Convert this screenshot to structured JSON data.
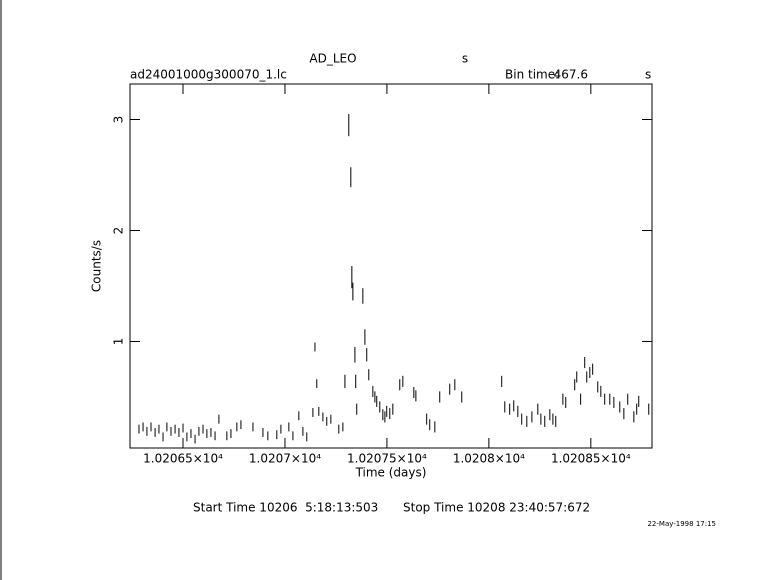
{
  "chart_data": {
    "type": "errorbar",
    "title": "AD_LEO",
    "title_suffix": "s",
    "subtitle": "ad24001000g300070_1.lc",
    "bin_time_label": "Bin time:",
    "bin_time": 467.6,
    "bin_time_unit": "s",
    "xlabel": "Time (days)",
    "ylabel": "Counts/s",
    "start_time": "Start Time 10206  5:18:13:503",
    "stop_time": "Stop Time 10208 23:40:57:672",
    "timestamp": "22-May-1998 17:15",
    "color": "#000000",
    "xlim": [
      10206.24,
      10208.8
    ],
    "ylim": [
      0.04,
      3.32
    ],
    "xticks": [
      {
        "value": 10206.5,
        "label": "1.02065×10⁴"
      },
      {
        "value": 10207.0,
        "label": "1.0207×10⁴"
      },
      {
        "value": 10207.5,
        "label": "1.02075×10⁴"
      },
      {
        "value": 10208.0,
        "label": "1.0208×10⁴"
      },
      {
        "value": 10208.5,
        "label": "1.02085×10⁴"
      }
    ],
    "yticks": [
      1,
      2,
      3
    ],
    "x": [
      10206.284,
      10206.304,
      10206.323,
      10206.343,
      10206.363,
      10206.382,
      10206.402,
      10206.421,
      10206.441,
      10206.461,
      10206.48,
      10206.5,
      10206.519,
      10206.539,
      10206.559,
      10206.578,
      10206.598,
      10206.617,
      10206.637,
      10206.657,
      10206.676,
      10206.715,
      10206.735,
      10206.764,
      10206.784,
      10206.843,
      10206.892,
      10206.916,
      10206.96,
      10206.98,
      10207.019,
      10207.039,
      10207.068,
      10207.088,
      10207.107,
      10207.137,
      10207.147,
      10207.156,
      10207.166,
      10207.186,
      10207.205,
      10207.225,
      10207.264,
      10207.284,
      10207.294,
      10207.313,
      10207.323,
      10207.328,
      10207.333,
      10207.343,
      10207.347,
      10207.352,
      10207.382,
      10207.392,
      10207.401,
      10207.411,
      10207.431,
      10207.441,
      10207.45,
      10207.465,
      10207.48,
      10207.49,
      10207.499,
      10207.514,
      10207.529,
      10207.563,
      10207.578,
      10207.632,
      10207.642,
      10207.695,
      10207.71,
      10207.735,
      10207.759,
      10207.808,
      10207.833,
      10207.867,
      10208.063,
      10208.078,
      10208.102,
      10208.122,
      10208.142,
      10208.161,
      10208.186,
      10208.211,
      10208.24,
      10208.255,
      10208.274,
      10208.299,
      10208.314,
      10208.328,
      10208.363,
      10208.377,
      10208.421,
      10208.431,
      10208.45,
      10208.47,
      10208.48,
      10208.495,
      10208.509,
      10208.534,
      10208.549,
      10208.568,
      10208.593,
      10208.613,
      10208.642,
      10208.662,
      10208.681,
      10208.711,
      10208.725,
      10208.735,
      10208.784
    ],
    "values": [
      0.21,
      0.23,
      0.19,
      0.23,
      0.18,
      0.21,
      0.14,
      0.23,
      0.19,
      0.21,
      0.18,
      0.22,
      0.14,
      0.17,
      0.12,
      0.19,
      0.21,
      0.17,
      0.18,
      0.15,
      0.3,
      0.15,
      0.17,
      0.23,
      0.25,
      0.23,
      0.18,
      0.15,
      0.16,
      0.21,
      0.23,
      0.15,
      0.33,
      0.19,
      0.14,
      0.36,
      0.95,
      0.62,
      0.37,
      0.32,
      0.28,
      0.3,
      0.21,
      0.23,
      0.64,
      2.95,
      2.48,
      1.58,
      1.45,
      0.88,
      0.64,
      0.39,
      1.41,
      1.04,
      0.88,
      0.7,
      0.55,
      0.5,
      0.46,
      0.41,
      0.34,
      0.32,
      0.37,
      0.35,
      0.39,
      0.61,
      0.64,
      0.54,
      0.51,
      0.3,
      0.25,
      0.23,
      0.5,
      0.57,
      0.61,
      0.5,
      0.64,
      0.41,
      0.39,
      0.42,
      0.37,
      0.3,
      0.28,
      0.32,
      0.39,
      0.3,
      0.28,
      0.34,
      0.3,
      0.28,
      0.48,
      0.45,
      0.61,
      0.68,
      0.48,
      0.81,
      0.68,
      0.72,
      0.75,
      0.59,
      0.55,
      0.48,
      0.48,
      0.45,
      0.41,
      0.35,
      0.48,
      0.32,
      0.39,
      0.46,
      0.39
    ],
    "errors": [
      0.04,
      0.04,
      0.04,
      0.04,
      0.04,
      0.04,
      0.04,
      0.04,
      0.04,
      0.04,
      0.04,
      0.04,
      0.04,
      0.04,
      0.04,
      0.04,
      0.04,
      0.04,
      0.04,
      0.04,
      0.04,
      0.04,
      0.04,
      0.04,
      0.04,
      0.04,
      0.04,
      0.04,
      0.04,
      0.04,
      0.04,
      0.04,
      0.04,
      0.04,
      0.04,
      0.04,
      0.04,
      0.04,
      0.04,
      0.04,
      0.04,
      0.04,
      0.04,
      0.04,
      0.06,
      0.1,
      0.09,
      0.1,
      0.08,
      0.07,
      0.06,
      0.05,
      0.07,
      0.07,
      0.06,
      0.05,
      0.05,
      0.05,
      0.05,
      0.05,
      0.05,
      0.05,
      0.05,
      0.05,
      0.05,
      0.05,
      0.05,
      0.05,
      0.05,
      0.05,
      0.05,
      0.05,
      0.05,
      0.05,
      0.05,
      0.05,
      0.05,
      0.05,
      0.05,
      0.05,
      0.05,
      0.05,
      0.05,
      0.05,
      0.05,
      0.05,
      0.05,
      0.05,
      0.05,
      0.05,
      0.05,
      0.05,
      0.05,
      0.05,
      0.05,
      0.05,
      0.05,
      0.05,
      0.05,
      0.05,
      0.05,
      0.05,
      0.05,
      0.05,
      0.05,
      0.05,
      0.05,
      0.05,
      0.05,
      0.05,
      0.05
    ]
  }
}
